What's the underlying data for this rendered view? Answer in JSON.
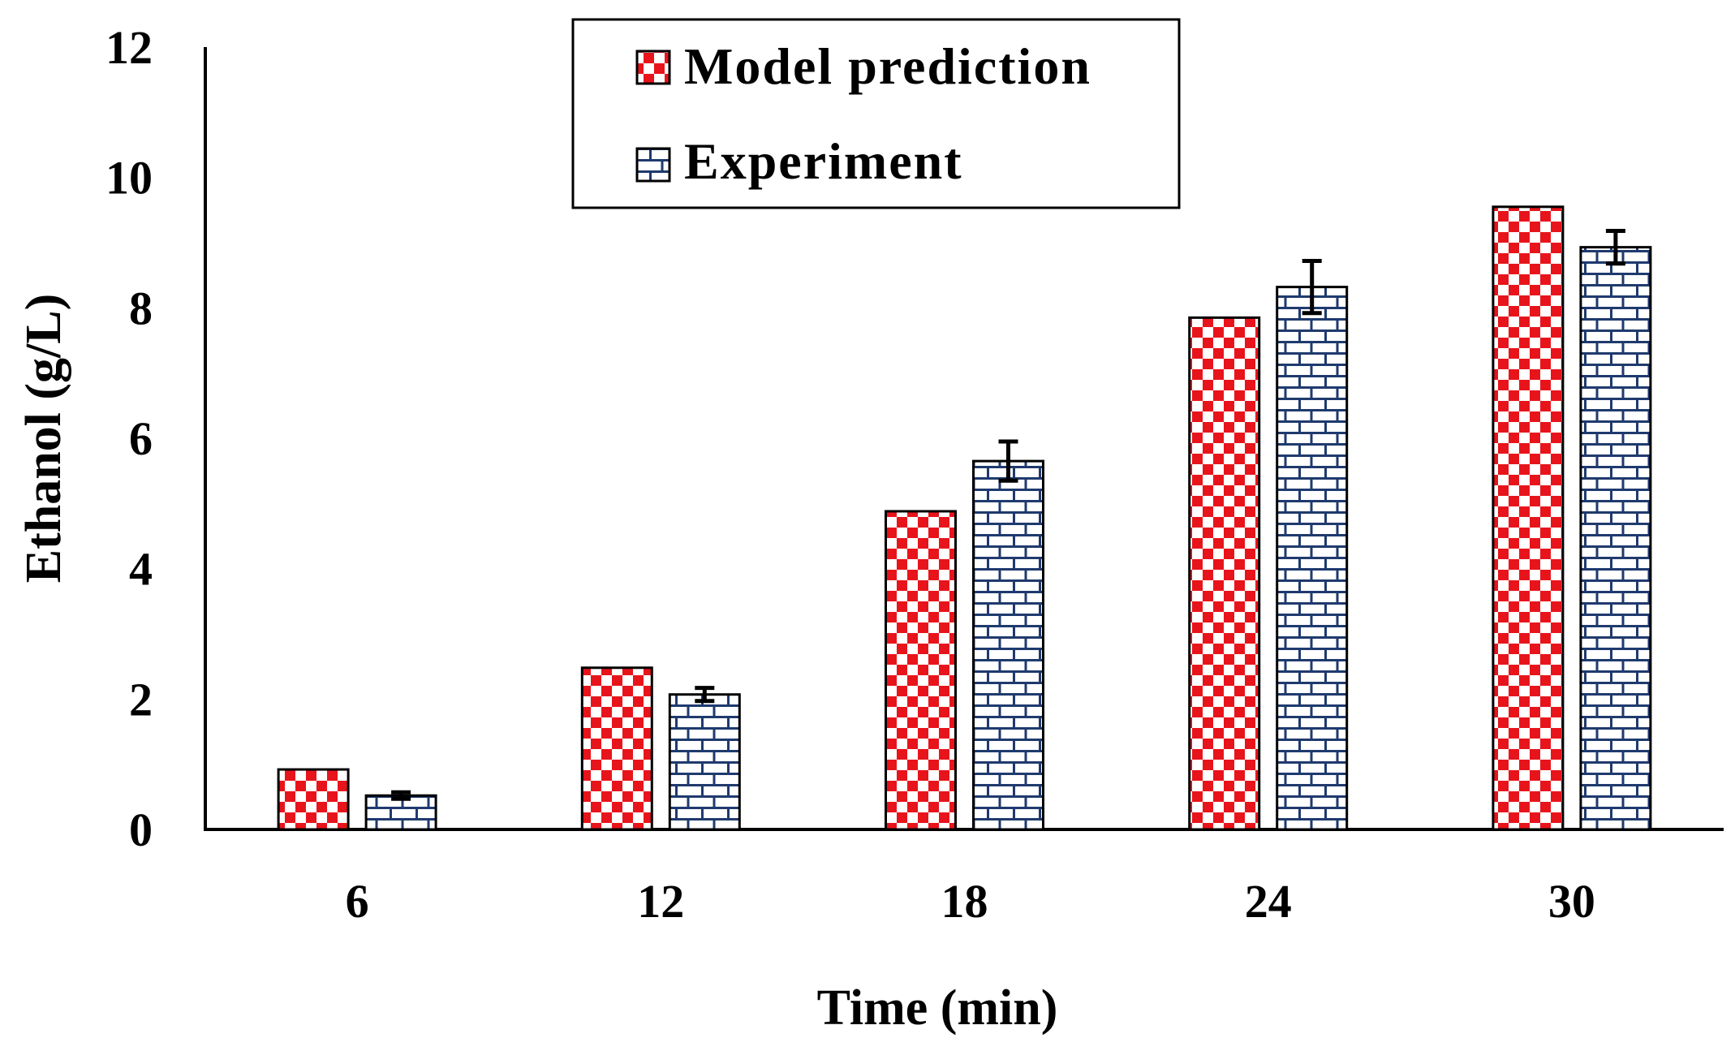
{
  "chart_data": {
    "type": "bar",
    "title": "",
    "xlabel": "Time (min)",
    "ylabel": "Ethanol (g/L)",
    "ylim": [
      0,
      12
    ],
    "yticks": [
      "0",
      "2",
      "4",
      "6",
      "8",
      "10",
      "12"
    ],
    "categories": [
      "6",
      "12",
      "18",
      "24",
      "30"
    ],
    "series": [
      {
        "name": "Model prediction",
        "pattern": "checker",
        "color": "#e8141b",
        "values": [
          0.92,
          2.48,
          4.88,
          7.85,
          9.55
        ]
      },
      {
        "name": "Experiment",
        "pattern": "brick",
        "color": "#1f3a6e",
        "values": [
          0.52,
          2.07,
          5.65,
          8.32,
          8.93
        ],
        "errors": [
          0.05,
          0.1,
          0.3,
          0.4,
          0.25
        ]
      }
    ],
    "legend": "top-center",
    "grid": false
  }
}
